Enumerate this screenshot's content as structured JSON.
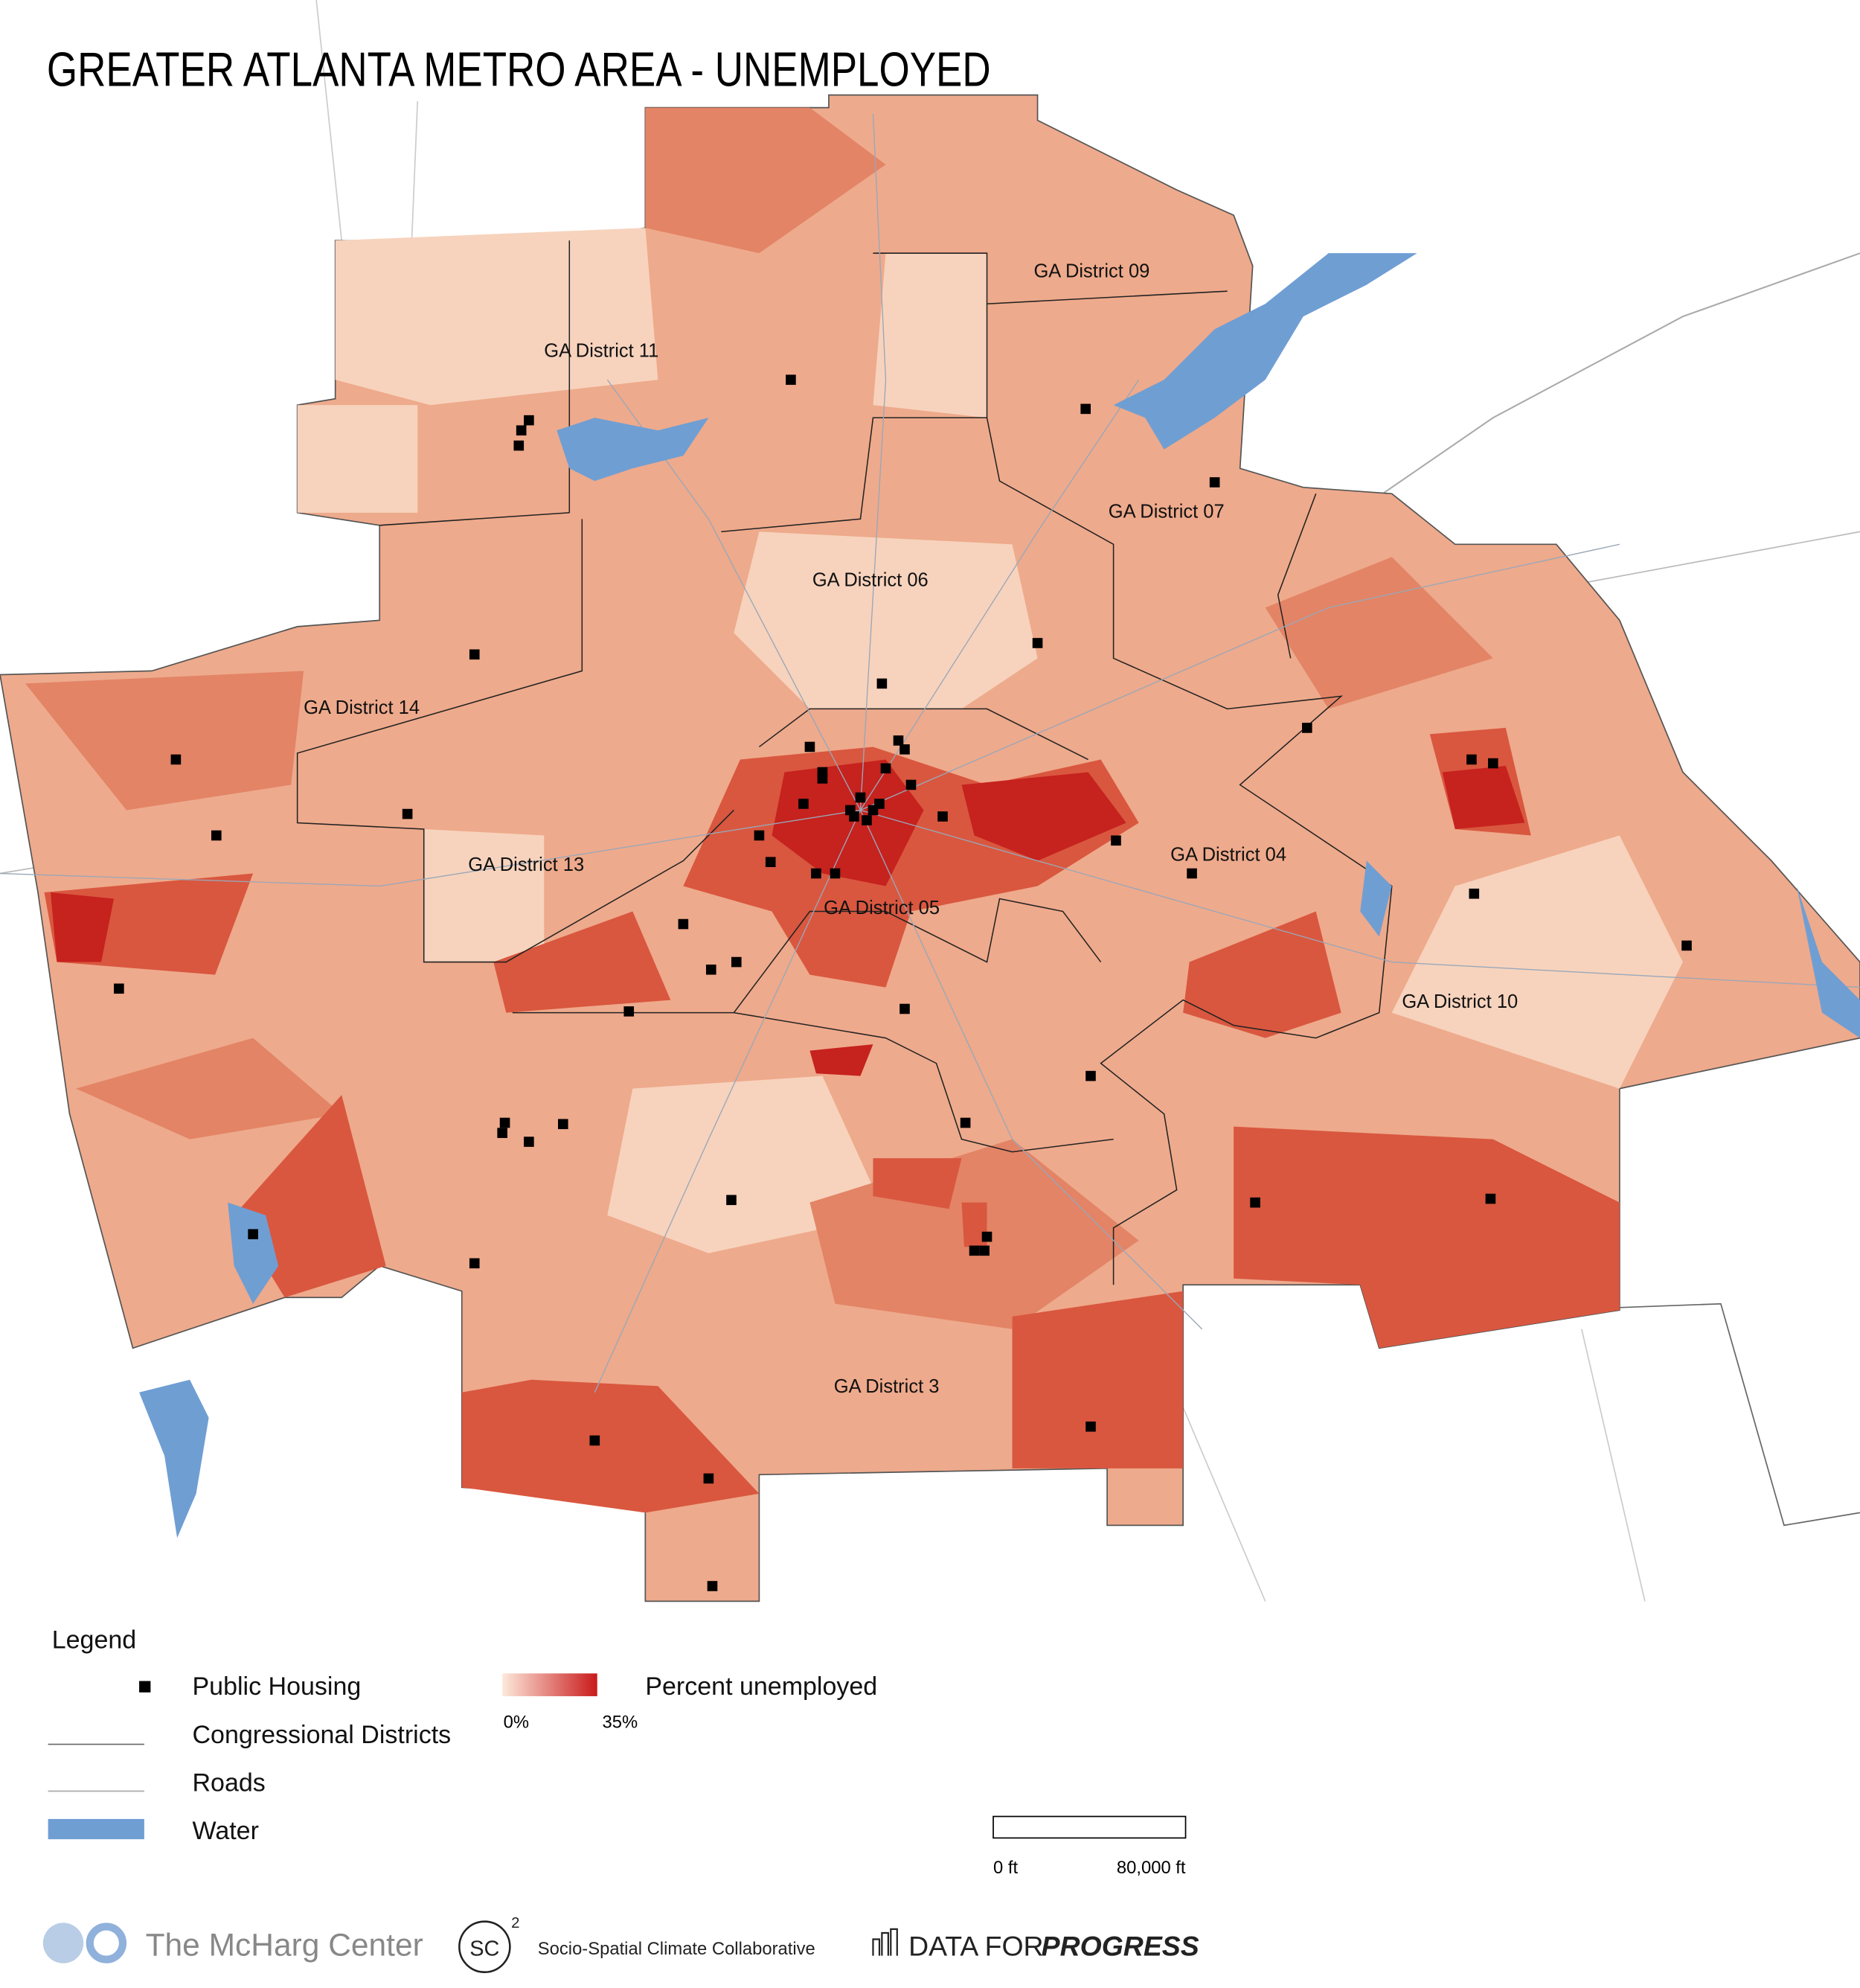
{
  "title": "GREATER ATLANTA METRO AREA - UNEMPLOYED",
  "districts": [
    "GA District 09",
    "GA District 11",
    "GA District 07",
    "GA District 06",
    "GA District 14",
    "GA District 13",
    "GA District 04",
    "GA District 05",
    "GA District 10",
    "GA District 3"
  ],
  "legend": {
    "title": "Legend",
    "items": [
      "Public Housing",
      "Congressional Districts",
      "Roads",
      "Water"
    ],
    "color_scale": {
      "title": "Percent unemployed",
      "colors": [
        "#fde9dc",
        "#c91a1a"
      ],
      "ticks": [
        {
          "value": 0,
          "label": "0%"
        },
        {
          "value": 35,
          "label": "35%"
        }
      ]
    }
  },
  "scale_bar": {
    "ticks": [
      {
        "value": 0,
        "label": "0 ft"
      },
      {
        "value": 80000,
        "label": "80,000 ft"
      }
    ]
  },
  "footer": {
    "mcharg": "The McHarg Center",
    "sc": "SC",
    "sc_exp": "2",
    "sc2": "Socio-Spatial Climate Collaborative",
    "dfp1": "DATA FOR",
    "dfp2": "PROGRESS"
  }
}
